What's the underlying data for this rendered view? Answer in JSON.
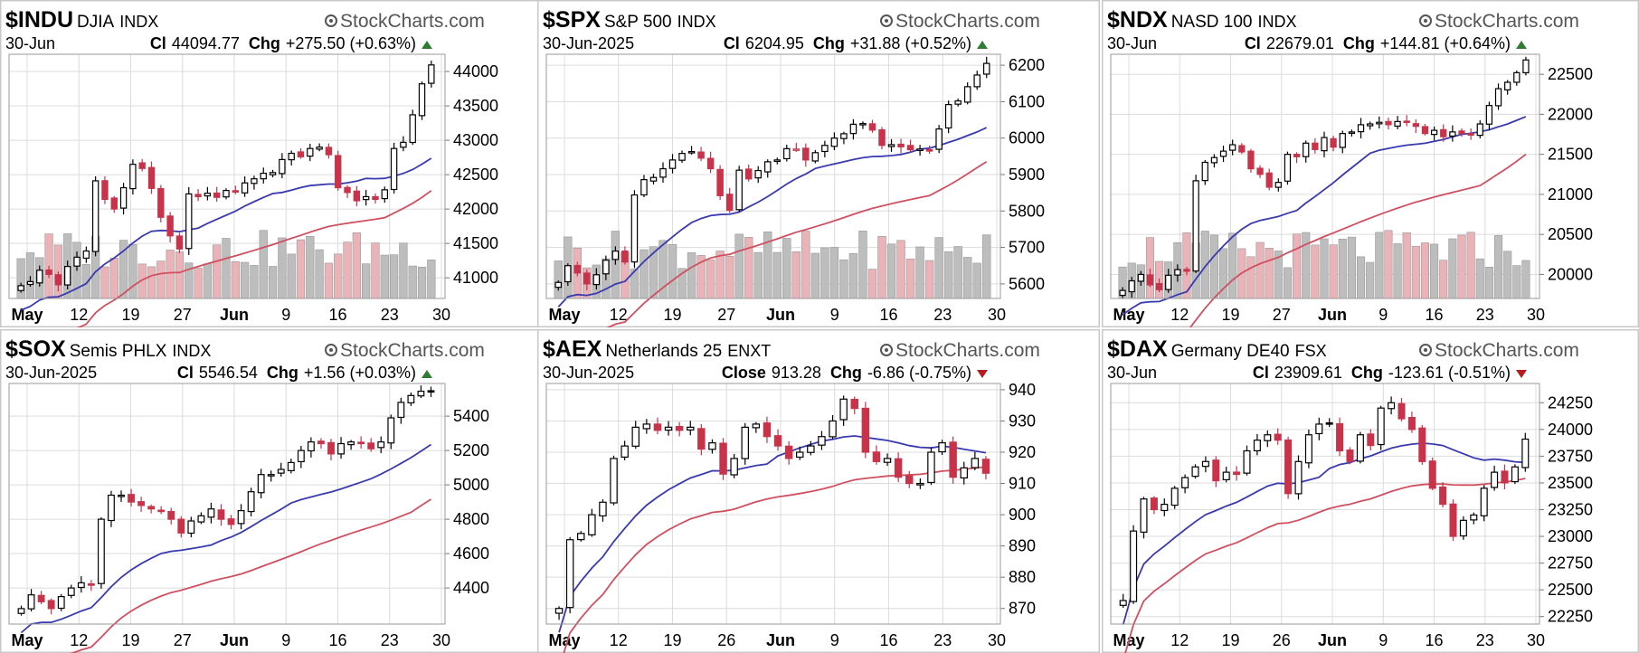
{
  "watermark": "StockCharts.com",
  "colors": {
    "up_candle": "#000000",
    "down_candle": "#c8334a",
    "ma_short": "#3a3ab0",
    "ma_long": "#d05060",
    "vol_up": "#bdbdbd",
    "vol_down": "#e9b3b8",
    "arrow_up": "#2e7d32",
    "arrow_down": "#b71c1c"
  },
  "chart_data": [
    {
      "type": "candlestick",
      "symbol": "$INDU",
      "name": "DJIA",
      "exchange": "INDX",
      "date": "30-Jun",
      "close_label": "Cl",
      "close": "44094.77",
      "chg_label": "Chg",
      "chg": "+275.50 (+0.63%)",
      "direction": "up",
      "x_ticks": [
        {
          "label": "May",
          "bold": true
        },
        {
          "label": "12",
          "bold": false
        },
        {
          "label": "19",
          "bold": false
        },
        {
          "label": "27",
          "bold": false
        },
        {
          "label": "Jun",
          "bold": true
        },
        {
          "label": "9",
          "bold": false
        },
        {
          "label": "16",
          "bold": false
        },
        {
          "label": "23",
          "bold": false
        },
        {
          "label": "30",
          "bold": false
        }
      ],
      "y_ticks": [
        "44000",
        "43500",
        "43000",
        "42500",
        "42000",
        "41500",
        "41000"
      ],
      "y_range": [
        40700,
        44250
      ],
      "has_volume": true,
      "ma_series": [
        "20-day MA",
        "50-day MA"
      ],
      "grid": true,
      "points": [
        40886,
        40945,
        41110,
        41050,
        40899,
        41165,
        41300,
        41390,
        42410,
        42140,
        42000,
        42310,
        42650,
        42590,
        42300,
        41880,
        41610,
        41420,
        42220,
        42180,
        42230,
        42170,
        42270,
        42250,
        42380,
        42440,
        42520,
        42530,
        42720,
        42810,
        42760,
        42880,
        42900,
        42790,
        42310,
        42240,
        42120,
        42180,
        42140,
        42280,
        42880,
        42970,
        43370,
        43820,
        44094.77
      ]
    },
    {
      "type": "candlestick",
      "symbol": "$SPX",
      "name": "S&P 500",
      "exchange": "INDX",
      "date": "30-Jun-2025",
      "close_label": "Cl",
      "close": "6204.95",
      "chg_label": "Chg",
      "chg": "+31.88 (+0.52%)",
      "direction": "up",
      "x_ticks": [
        {
          "label": "May",
          "bold": true
        },
        {
          "label": "12",
          "bold": false
        },
        {
          "label": "19",
          "bold": false
        },
        {
          "label": "27",
          "bold": false
        },
        {
          "label": "Jun",
          "bold": true
        },
        {
          "label": "9",
          "bold": false
        },
        {
          "label": "16",
          "bold": false
        },
        {
          "label": "23",
          "bold": false
        },
        {
          "label": "30",
          "bold": false
        }
      ],
      "y_ticks": [
        "6200",
        "6100",
        "6000",
        "5900",
        "5800",
        "5700",
        "5600"
      ],
      "y_range": [
        5560,
        6230
      ],
      "has_volume": true,
      "ma_series": [
        "20-day MA",
        "50-day MA"
      ],
      "grid": true,
      "points": [
        5604,
        5650,
        5630,
        5600,
        5625,
        5665,
        5690,
        5660,
        5844,
        5886,
        5892,
        5916,
        5940,
        5958,
        5963,
        5945,
        5916,
        5842,
        5802,
        5912,
        5888,
        5911,
        5935,
        5940,
        5971,
        5970,
        5940,
        5960,
        5980,
        6000,
        6012,
        6038,
        6040,
        6022,
        5980,
        5982,
        5976,
        5968,
        5970,
        5967,
        6025,
        6092,
        6102,
        6141,
        6173,
        6204.95
      ]
    },
    {
      "type": "candlestick",
      "symbol": "$NDX",
      "name": "NASD 100",
      "exchange": "INDX",
      "date": "30-Jun",
      "close_label": "Cl",
      "close": "22679.01",
      "chg_label": "Chg",
      "chg": "+144.81 (+0.64%)",
      "direction": "up",
      "x_ticks": [
        {
          "label": "May",
          "bold": true
        },
        {
          "label": "12",
          "bold": false
        },
        {
          "label": "19",
          "bold": false
        },
        {
          "label": "27",
          "bold": false
        },
        {
          "label": "Jun",
          "bold": true
        },
        {
          "label": "9",
          "bold": false
        },
        {
          "label": "16",
          "bold": false
        },
        {
          "label": "23",
          "bold": false
        },
        {
          "label": "30",
          "bold": false
        }
      ],
      "y_ticks": [
        "22500",
        "22000",
        "21500",
        "21000",
        "20500",
        "20000"
      ],
      "y_range": [
        19700,
        22750
      ],
      "has_volume": true,
      "ma_series": [
        "20-day MA",
        "50-day MA"
      ],
      "grid": true,
      "points": [
        19800,
        19920,
        20000,
        19870,
        19810,
        19990,
        20060,
        20040,
        21170,
        21400,
        21460,
        21540,
        21620,
        21530,
        21320,
        21250,
        21090,
        21150,
        21500,
        21470,
        21640,
        21560,
        21710,
        21590,
        21760,
        21780,
        21870,
        21880,
        21900,
        21870,
        21910,
        21900,
        21850,
        21760,
        21800,
        21720,
        21780,
        21760,
        21740,
        21880,
        22110,
        22320,
        22400,
        22520,
        22679.01
      ]
    },
    {
      "type": "candlestick",
      "symbol": "$SOX",
      "name": "Semis PHLX",
      "exchange": "INDX",
      "date": "30-Jun-2025",
      "close_label": "Cl",
      "close": "5546.54",
      "chg_label": "Chg",
      "chg": "+1.56 (+0.03%)",
      "direction": "up",
      "x_ticks": [
        {
          "label": "May",
          "bold": true
        },
        {
          "label": "12",
          "bold": false
        },
        {
          "label": "19",
          "bold": false
        },
        {
          "label": "27",
          "bold": false
        },
        {
          "label": "Jun",
          "bold": true
        },
        {
          "label": "9",
          "bold": false
        },
        {
          "label": "16",
          "bold": false
        },
        {
          "label": "23",
          "bold": false
        },
        {
          "label": "30",
          "bold": false
        }
      ],
      "y_ticks": [
        "5400",
        "5200",
        "5000",
        "4800",
        "4600",
        "4400"
      ],
      "y_range": [
        4190,
        5590
      ],
      "has_volume": false,
      "ma_series": [
        "20-day MA",
        "50-day MA"
      ],
      "grid": true,
      "points": [
        4280,
        4360,
        4320,
        4280,
        4350,
        4400,
        4430,
        4420,
        4800,
        4940,
        4940,
        4900,
        4880,
        4860,
        4850,
        4800,
        4720,
        4790,
        4820,
        4860,
        4800,
        4770,
        4850,
        4960,
        5060,
        5060,
        5090,
        5130,
        5200,
        5250,
        5240,
        5180,
        5240,
        5250,
        5240,
        5210,
        5250,
        5390,
        5480,
        5520,
        5545,
        5546.54
      ]
    },
    {
      "type": "candlestick",
      "symbol": "$AEX",
      "name": "Netherlands 25",
      "exchange": "ENXT",
      "date": "30-Jun-2025",
      "close_label": "Close",
      "close": "913.28",
      "chg_label": "Chg",
      "chg": "-6.86 (-0.75%)",
      "direction": "down",
      "x_ticks": [
        {
          "label": "May",
          "bold": true
        },
        {
          "label": "12",
          "bold": false
        },
        {
          "label": "19",
          "bold": false
        },
        {
          "label": "26",
          "bold": false
        },
        {
          "label": "Jun",
          "bold": true
        },
        {
          "label": "9",
          "bold": false
        },
        {
          "label": "16",
          "bold": false
        },
        {
          "label": "23",
          "bold": false
        },
        {
          "label": "30",
          "bold": false
        }
      ],
      "y_ticks": [
        "940",
        "930",
        "920",
        "910",
        "900",
        "890",
        "880",
        "870"
      ],
      "y_range": [
        865,
        942
      ],
      "has_volume": false,
      "ma_series": [
        "20-day MA",
        "50-day MA"
      ],
      "grid": true,
      "points": [
        870,
        892,
        894,
        900,
        904,
        918,
        922,
        928,
        929,
        927,
        928,
        927,
        928,
        921,
        923,
        913,
        918,
        928,
        929,
        925,
        922,
        918,
        920,
        922,
        925,
        930,
        937,
        934,
        920,
        917,
        918,
        912,
        910,
        910,
        920,
        923,
        912,
        915,
        918,
        913.28
      ]
    },
    {
      "type": "candlestick",
      "symbol": "$DAX",
      "name": "Germany DE40",
      "exchange": "FSX",
      "date": "30-Jun",
      "close_label": "Cl",
      "close": "23909.61",
      "chg_label": "Chg",
      "chg": "-123.61 (-0.51%)",
      "direction": "down",
      "x_ticks": [
        {
          "label": "May",
          "bold": true
        },
        {
          "label": "12",
          "bold": false
        },
        {
          "label": "19",
          "bold": false
        },
        {
          "label": "26",
          "bold": false
        },
        {
          "label": "Jun",
          "bold": true
        },
        {
          "label": "9",
          "bold": false
        },
        {
          "label": "16",
          "bold": false
        },
        {
          "label": "23",
          "bold": false
        },
        {
          "label": "30",
          "bold": false
        }
      ],
      "y_ticks": [
        "24250",
        "24000",
        "23750",
        "23500",
        "23250",
        "23000",
        "22750",
        "22500",
        "22250"
      ],
      "y_range": [
        22180,
        24430
      ],
      "has_volume": false,
      "ma_series": [
        "20-day MA",
        "50-day MA"
      ],
      "grid": true,
      "points": [
        22400,
        23050,
        23350,
        23250,
        23300,
        23450,
        23550,
        23650,
        23700,
        23520,
        23600,
        23580,
        23800,
        23900,
        23950,
        23900,
        23400,
        23700,
        23950,
        24050,
        24050,
        23800,
        23700,
        23950,
        23850,
        24200,
        24250,
        24100,
        24000,
        23700,
        23450,
        23300,
        23000,
        23150,
        23200,
        23450,
        23600,
        23500,
        23650,
        23909.61
      ]
    }
  ]
}
